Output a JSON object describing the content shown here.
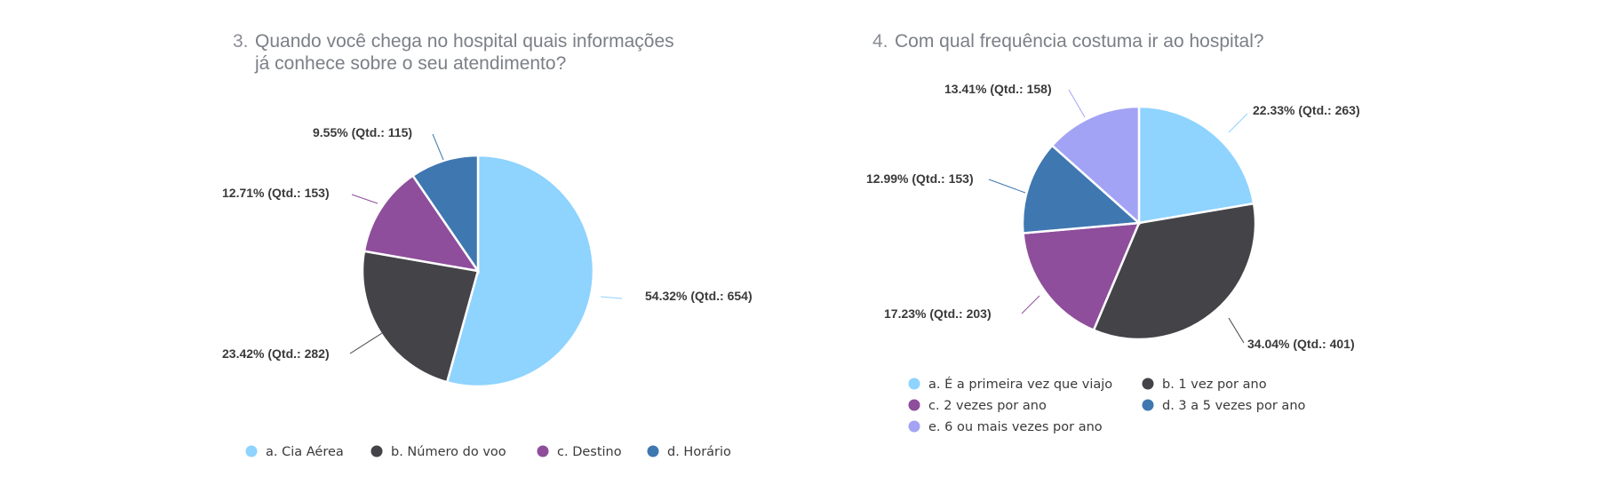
{
  "chart_data": [
    {
      "type": "pie",
      "number": "3.",
      "title": "Quando você chega no hospital quais informações\njá conhece sobre o seu atendimento?",
      "slices": [
        {
          "name": "a. Cia Aérea",
          "value": 54.32,
          "label": "54.32% (Qtd.: 654)",
          "color": "#8fd3ff"
        },
        {
          "name": "b. Número do voo",
          "value": 23.42,
          "label": "23.42% (Qtd.: 282)",
          "color": "#434348"
        },
        {
          "name": "c. Destino",
          "value": 12.71,
          "label": "12.71% (Qtd.: 153)",
          "color": "#8e4e9b"
        },
        {
          "name": "d. Horário",
          "value": 9.55,
          "label": "9.55% (Qtd.: 115)",
          "color": "#3f77b0"
        }
      ]
    },
    {
      "type": "pie",
      "number": "4.",
      "title": "Com qual frequência costuma ir ao hospital?",
      "slices": [
        {
          "name": "a. É a primeira vez que viajo",
          "value": 22.33,
          "label": "22.33% (Qtd.: 263)",
          "color": "#8fd3ff"
        },
        {
          "name": "b. 1 vez por ano",
          "value": 34.04,
          "label": "34.04% (Qtd.: 401)",
          "color": "#434348"
        },
        {
          "name": "c. 2 vezes por ano",
          "value": 17.23,
          "label": "17.23% (Qtd.: 203)",
          "color": "#8e4e9b"
        },
        {
          "name": "d. 3 a 5 vezes por ano",
          "value": 12.99,
          "label": "12.99% (Qtd.: 153)",
          "color": "#3f77b0"
        },
        {
          "name": "e. 6 ou mais vezes por ano",
          "value": 13.41,
          "label": "13.41% (Qtd.: 158)",
          "color": "#a3a3f5"
        }
      ]
    }
  ]
}
